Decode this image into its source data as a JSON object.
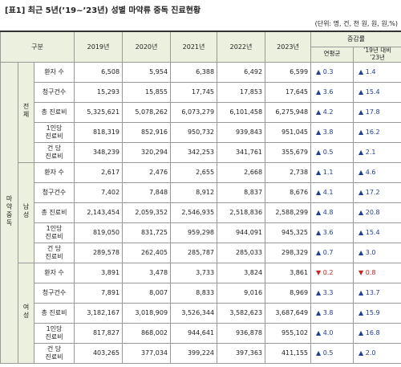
{
  "header": {
    "title": "[표1] 최근 5년(’19~’23년) 성별 마약류 중독 진료현황",
    "unit": "(단위: 명, 건, 천 원, 원, 원,%)"
  },
  "table": {
    "head": {
      "category": "구분",
      "years": [
        "2019년",
        "2020년",
        "2021년",
        "2022년",
        "2023년"
      ],
      "change": "증감률",
      "change_columns": [
        "연평균",
        "’19년 대비\n’23년"
      ]
    },
    "group": "마약중독",
    "sections": [
      {
        "name": "전체",
        "rows": [
          {
            "label": "환자 수",
            "values": [
              "6,508",
              "5,954",
              "6,388",
              "6,492",
              "6,599"
            ],
            "changes": [
              "▲ 0.3",
              "▲ 1.4"
            ]
          },
          {
            "label": "청구건수",
            "values": [
              "15,293",
              "15,855",
              "17,745",
              "17,853",
              "17,645"
            ],
            "changes": [
              "▲ 3.6",
              "▲ 15.4"
            ]
          },
          {
            "label": "총 진료비",
            "values": [
              "5,325,621",
              "5,078,262",
              "6,073,279",
              "6,101,458",
              "6,275,948"
            ],
            "changes": [
              "▲ 4.2",
              "▲ 17.8"
            ]
          },
          {
            "label": "1인당\n진료비",
            "values": [
              "818,319",
              "852,916",
              "950,732",
              "939,843",
              "951,045"
            ],
            "changes": [
              "▲ 3.8",
              "▲ 16.2"
            ]
          },
          {
            "label": "건  당\n진료비",
            "values": [
              "348,239",
              "320,294",
              "342,253",
              "341,761",
              "355,679"
            ],
            "changes": [
              "▲ 0.5",
              "▲ 2.1"
            ]
          }
        ]
      },
      {
        "name": "남성",
        "rows": [
          {
            "label": "환자 수",
            "values": [
              "2,617",
              "2,476",
              "2,655",
              "2,668",
              "2,738"
            ],
            "changes": [
              "▲ 1.1",
              "▲ 4.6"
            ]
          },
          {
            "label": "청구건수",
            "values": [
              "7,402",
              "7,848",
              "8,912",
              "8,837",
              "8,676"
            ],
            "changes": [
              "▲ 4.1",
              "▲ 17.2"
            ]
          },
          {
            "label": "총 진료비",
            "values": [
              "2,143,454",
              "2,059,352",
              "2,546,935",
              "2,518,836",
              "2,588,299"
            ],
            "changes": [
              "▲ 4.8",
              "▲ 20.8"
            ]
          },
          {
            "label": "1인당\n진료비",
            "values": [
              "819,050",
              "831,725",
              "959,298",
              "944,091",
              "945,325"
            ],
            "changes": [
              "▲ 3.6",
              "▲ 15.4"
            ]
          },
          {
            "label": "건  당\n진료비",
            "values": [
              "289,578",
              "262,405",
              "285,787",
              "285,033",
              "298,329"
            ],
            "changes": [
              "▲ 0.7",
              "▲ 3.0"
            ]
          }
        ]
      },
      {
        "name": "여성",
        "rows": [
          {
            "label": "환자 수",
            "values": [
              "3,891",
              "3,478",
              "3,733",
              "3,824",
              "3,861"
            ],
            "changes": [
              "▼ 0.2",
              "▼ 0.8"
            ]
          },
          {
            "label": "청구건수",
            "values": [
              "7,891",
              "8,007",
              "8,833",
              "9,016",
              "8,969"
            ],
            "changes": [
              "▲ 3.3",
              "▲ 13.7"
            ]
          },
          {
            "label": "총 진료비",
            "values": [
              "3,182,167",
              "3,018,909",
              "3,526,344",
              "3,582,623",
              "3,687,649"
            ],
            "changes": [
              "▲ 3.8",
              "▲ 15.9"
            ]
          },
          {
            "label": "1인당\n진료비",
            "values": [
              "817,827",
              "868,002",
              "944,641",
              "936,878",
              "955,102"
            ],
            "changes": [
              "▲ 4.0",
              "▲ 16.8"
            ]
          },
          {
            "label": "건  당\n진료비",
            "values": [
              "403,265",
              "377,034",
              "399,224",
              "397,363",
              "411,155"
            ],
            "changes": [
              "▲ 0.5",
              "▲ 2.0"
            ]
          }
        ]
      }
    ]
  }
}
